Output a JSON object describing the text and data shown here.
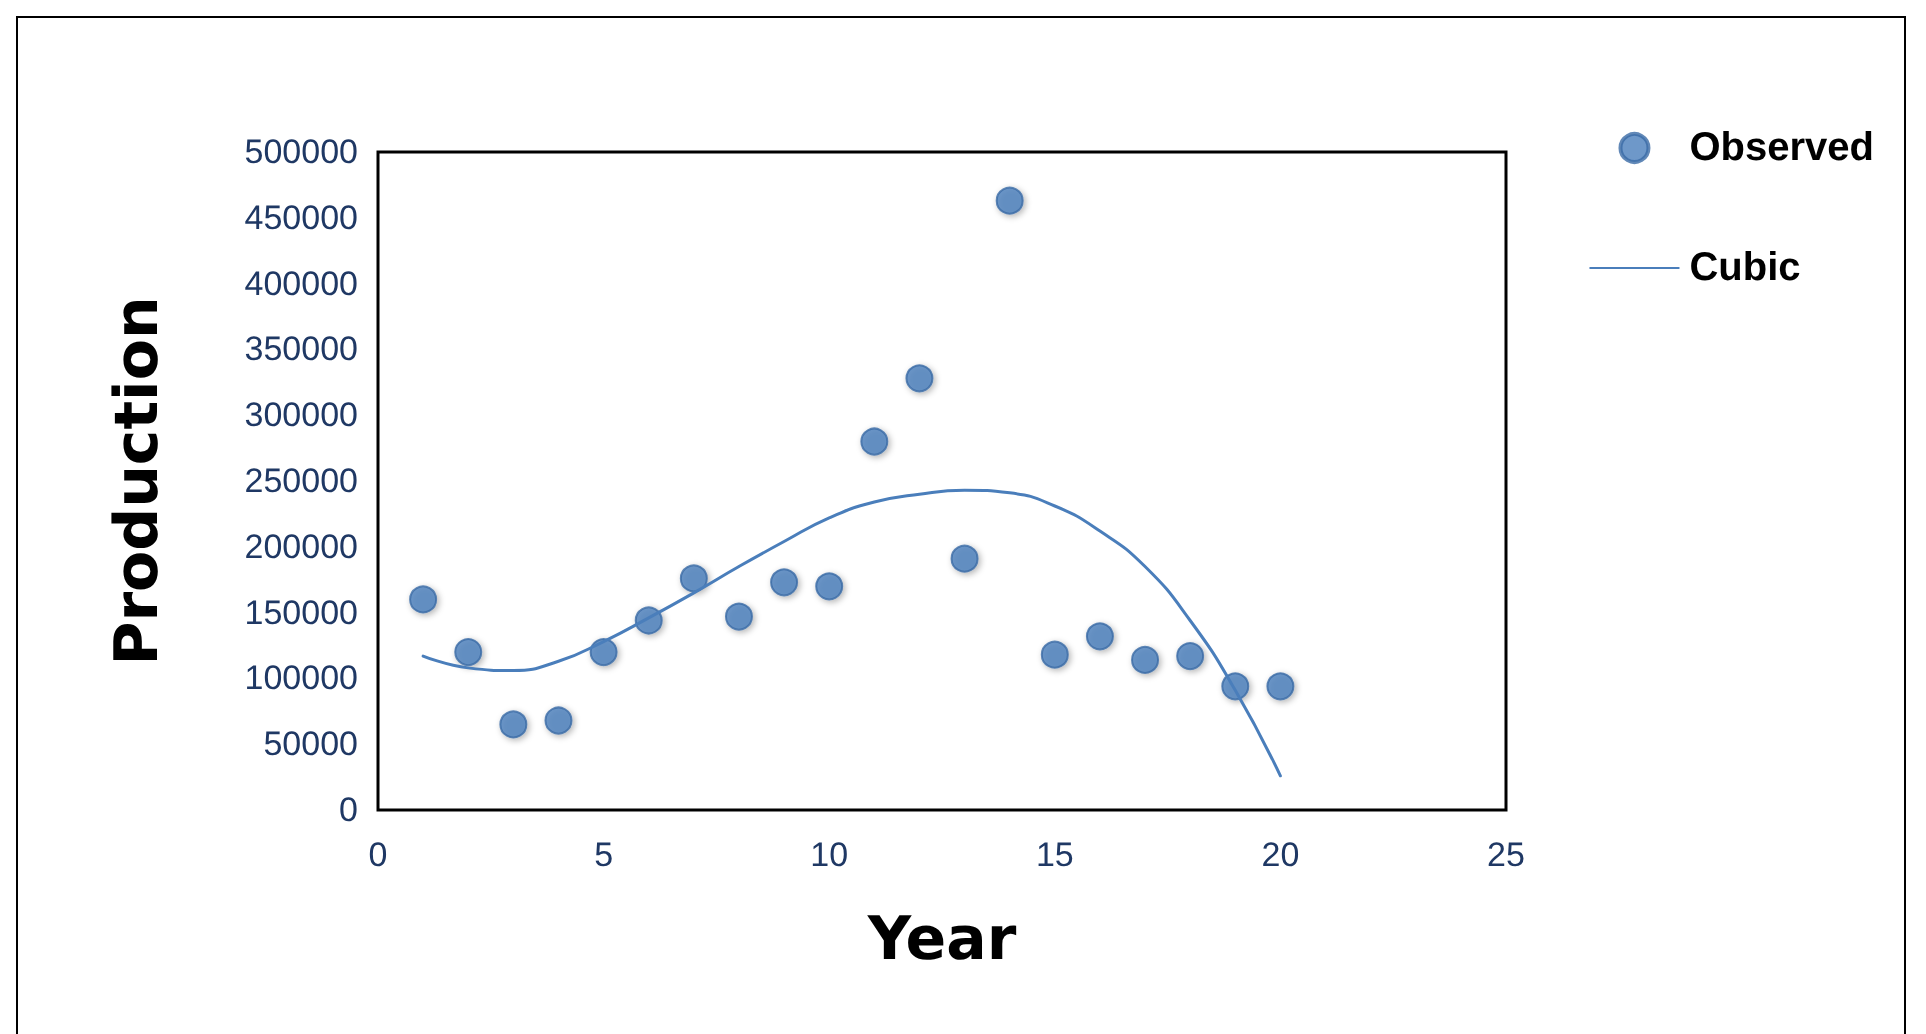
{
  "chart_data": {
    "type": "scatter",
    "xlabel": "Year",
    "ylabel": "Production",
    "x": [
      1,
      2,
      3,
      4,
      5,
      6,
      7,
      8,
      9,
      10,
      11,
      12,
      13,
      14,
      15,
      16,
      17,
      18,
      19,
      20
    ],
    "series": [
      {
        "name": "Observed",
        "type": "scatter",
        "marker": "circle",
        "color": "#4a7ebb",
        "values": [
          160000,
          120000,
          65000,
          68000,
          120000,
          144000,
          176000,
          147000,
          173000,
          170000,
          280000,
          328000,
          191000,
          463000,
          118000,
          132000,
          114000,
          117000,
          94000,
          94000
        ]
      },
      {
        "name": "Cubic",
        "type": "line",
        "marker": "none",
        "line_style": "solid",
        "color": "#4a7ebb",
        "x": [
          1,
          2,
          3,
          4,
          5,
          6,
          7,
          8,
          9,
          10,
          11,
          12,
          13,
          14,
          15,
          16,
          17,
          18,
          19,
          20
        ],
        "values": [
          117000,
          108000,
          106000,
          113000,
          128000,
          146000,
          165000,
          185000,
          204000,
          222000,
          234000,
          240000,
          243000,
          241000,
          231000,
          212000,
          185000,
          144000,
          91000,
          26000
        ]
      }
    ],
    "xlim": [
      0,
      25
    ],
    "xticks": [
      0,
      5,
      10,
      15,
      20,
      25
    ],
    "ylim": [
      0,
      500000
    ],
    "yticks": [
      0,
      50000,
      100000,
      150000,
      200000,
      250000,
      300000,
      350000,
      400000,
      450000,
      500000
    ],
    "grid": false,
    "legend": "top right"
  }
}
